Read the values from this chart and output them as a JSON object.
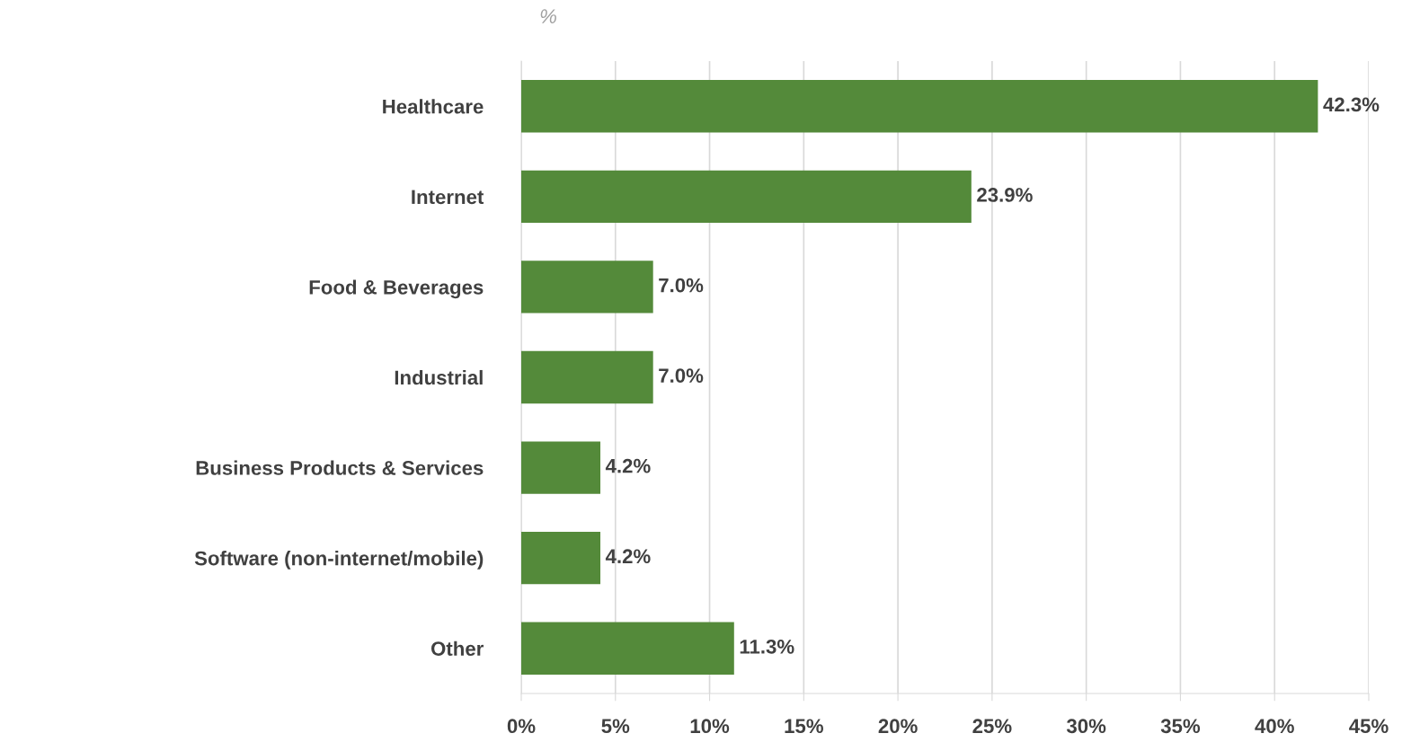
{
  "chart_data": {
    "type": "bar",
    "orientation": "horizontal",
    "categories": [
      "Healthcare",
      "Internet",
      "Food & Beverages",
      "Industrial",
      "Business Products & Services",
      "Software (non-internet/mobile)",
      "Other"
    ],
    "values": [
      42.3,
      23.9,
      7.0,
      7.0,
      4.2,
      4.2,
      11.3
    ],
    "value_labels": [
      "42.3%",
      "23.9%",
      "7.0%",
      "7.0%",
      "4.2%",
      "4.2%",
      "11.3%"
    ],
    "color": "#548a3a",
    "xlim": [
      0,
      45
    ],
    "xticks": [
      {
        "value": 0,
        "label": "0%"
      },
      {
        "value": 5,
        "label": "5%"
      },
      {
        "value": 10,
        "label": "10%"
      },
      {
        "value": 15,
        "label": "15%"
      },
      {
        "value": 20,
        "label": "20%"
      },
      {
        "value": 25,
        "label": "25%"
      },
      {
        "value": 30,
        "label": "30%"
      },
      {
        "value": 35,
        "label": "35%"
      },
      {
        "value": 40,
        "label": "40%"
      },
      {
        "value": 45,
        "label": "45%"
      }
    ],
    "grid": "x",
    "annotations": [
      "%"
    ]
  }
}
